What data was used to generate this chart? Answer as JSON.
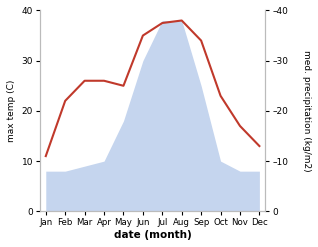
{
  "months": [
    "Jan",
    "Feb",
    "Mar",
    "Apr",
    "May",
    "Jun",
    "Jul",
    "Aug",
    "Sep",
    "Oct",
    "Nov",
    "Dec"
  ],
  "temperature": [
    11,
    22,
    26,
    26,
    25,
    35,
    37.5,
    38,
    34,
    23,
    17,
    13
  ],
  "precipitation": [
    8,
    8,
    9,
    10,
    18,
    30,
    38,
    38,
    25,
    10,
    8,
    8
  ],
  "temp_color": "#c0392b",
  "precip_color": "#c5d5ee",
  "ylim_left": [
    0,
    40
  ],
  "ylim_right": [
    0,
    40
  ],
  "yticks_left": [
    0,
    10,
    20,
    30,
    40
  ],
  "yticks_right": [
    0,
    10,
    20,
    30,
    40
  ],
  "xlabel": "date (month)",
  "ylabel_left": "max temp (C)",
  "ylabel_right": "med. precipitation (kg/m2)",
  "bg_color": "#ffffff"
}
